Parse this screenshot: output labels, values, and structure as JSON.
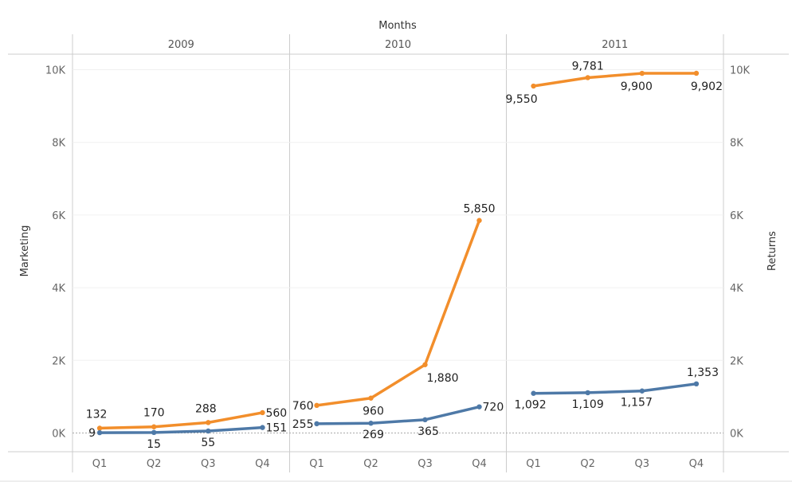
{
  "chart_data": {
    "type": "line",
    "title": "Months",
    "column_groups": [
      "2009",
      "2010",
      "2011"
    ],
    "categories": [
      "Q1",
      "Q2",
      "Q3",
      "Q4"
    ],
    "ylabel_left": "Marketing",
    "ylabel_right": "Returns",
    "ylim": [
      0,
      10500
    ],
    "yticks": [
      0,
      2000,
      4000,
      6000,
      8000,
      10000
    ],
    "ytick_labels": [
      "0K",
      "2K",
      "4K",
      "6K",
      "8K",
      "10K"
    ],
    "series": [
      {
        "name": "Marketing",
        "color": "#F28E2B",
        "values": [
          [
            132,
            170,
            288,
            560
          ],
          [
            760,
            960,
            1880,
            5850
          ],
          [
            9550,
            9781,
            9900,
            9902
          ]
        ],
        "labels": [
          [
            "132",
            "170",
            "288",
            "560"
          ],
          [
            "760",
            "960",
            "1,880",
            "5,850"
          ],
          [
            "9,550",
            "9,781",
            "9,900",
            "9,902"
          ]
        ]
      },
      {
        "name": "Returns",
        "color": "#4E79A7",
        "values": [
          [
            9,
            15,
            55,
            151
          ],
          [
            255,
            269,
            365,
            720
          ],
          [
            1092,
            1109,
            1157,
            1353
          ]
        ],
        "labels": [
          [
            "9",
            "15",
            "55",
            "151"
          ],
          [
            "255",
            "269",
            "365",
            "720"
          ],
          [
            "1,092",
            "1,109",
            "1,157",
            "1,353"
          ]
        ]
      }
    ]
  }
}
